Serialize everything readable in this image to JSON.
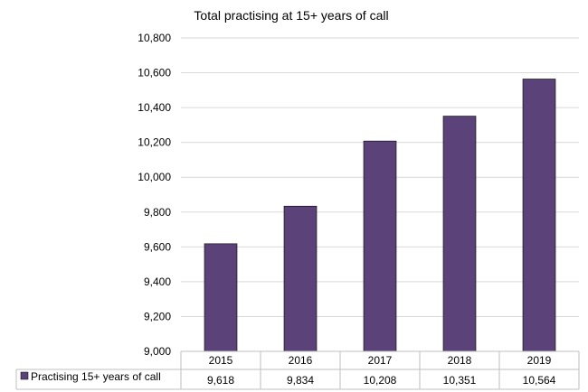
{
  "chart_data": {
    "type": "bar",
    "title": "Total practising at 15+ years of call",
    "categories": [
      "2015",
      "2016",
      "2017",
      "2018",
      "2019"
    ],
    "series": [
      {
        "name": "Practising 15+ years of call",
        "values": [
          9618,
          9834,
          10208,
          10351,
          10564
        ],
        "labels": [
          "9,618",
          "9,834",
          "10,208",
          "10,351",
          "10,564"
        ],
        "color": "#5b4379"
      }
    ],
    "ylim": [
      9000,
      10800
    ],
    "yticks": [
      9000,
      9200,
      9400,
      9600,
      9800,
      10000,
      10200,
      10400,
      10600,
      10800
    ],
    "ytick_labels": [
      "9,000",
      "9,200",
      "9,400",
      "9,600",
      "9,800",
      "10,000",
      "10,200",
      "10,400",
      "10,600",
      "10,800"
    ],
    "grid": true,
    "legend": "data-table",
    "xlabel": "",
    "ylabel": ""
  }
}
